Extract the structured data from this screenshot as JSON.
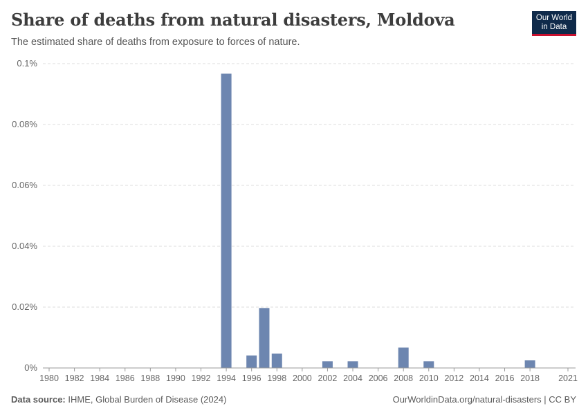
{
  "header": {
    "title": "Share of deaths from natural disasters, Moldova",
    "subtitle": "The estimated share of deaths from exposure to forces of nature."
  },
  "logo": {
    "line1": "Our World",
    "line2": "in Data"
  },
  "footer": {
    "source_label": "Data source:",
    "source_text": "IHME, Global Burden of Disease (2024)",
    "url_text": "OurWorldinData.org/natural-disasters | CC BY"
  },
  "colors": {
    "bar": "#6d86b0",
    "grid": "#dddddd",
    "axis": "#999999",
    "logo_bg": "#0f2a4a",
    "logo_accent": "#c8102e"
  },
  "chart_data": {
    "type": "bar",
    "title": "Share of deaths from natural disasters, Moldova",
    "subtitle": "The estimated share of deaths from exposure to forces of nature.",
    "ylim": [
      0,
      0.1
    ],
    "y_unit": "%",
    "y_ticks": [
      0,
      0.02,
      0.04,
      0.06,
      0.08,
      0.1
    ],
    "y_tick_labels": [
      "0%",
      "0.02%",
      "0.04%",
      "0.06%",
      "0.08%",
      "0.1%"
    ],
    "x_range": [
      1980,
      2021
    ],
    "x_ticks": [
      1980,
      1982,
      1984,
      1986,
      1988,
      1990,
      1992,
      1994,
      1996,
      1998,
      2000,
      2002,
      2004,
      2006,
      2008,
      2010,
      2012,
      2014,
      2016,
      2018,
      2021
    ],
    "grid": true,
    "series": [
      {
        "x": [
          1994,
          1996,
          1997,
          1998,
          2002,
          2004,
          2008,
          2010,
          2018
        ],
        "values": [
          0.0967,
          0.0041,
          0.0197,
          0.0047,
          0.0022,
          0.0022,
          0.0067,
          0.0022,
          0.0025
        ]
      }
    ]
  }
}
